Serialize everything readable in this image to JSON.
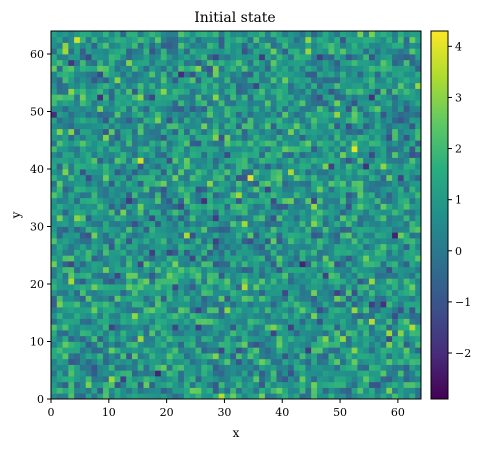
{
  "chart_data": {
    "type": "heatmap",
    "title": "Initial state",
    "xlabel": "x",
    "ylabel": "y",
    "xlim": [
      0,
      64
    ],
    "ylim": [
      0,
      64
    ],
    "grid_size": [
      64,
      64
    ],
    "x_ticks": [
      "0",
      "10",
      "20",
      "30",
      "40",
      "50",
      "60"
    ],
    "y_ticks": [
      "0",
      "10",
      "20",
      "30",
      "40",
      "50",
      "60"
    ],
    "colormap": "viridis",
    "colorbar": {
      "range": [
        -2.9,
        4.3
      ],
      "ticks": [
        "−2",
        "−1",
        "0",
        "1",
        "2",
        "3",
        "4"
      ]
    },
    "value_distribution": {
      "mean": 0.8,
      "std": 0.9,
      "description": "random field of values, one value per grid cell"
    }
  }
}
